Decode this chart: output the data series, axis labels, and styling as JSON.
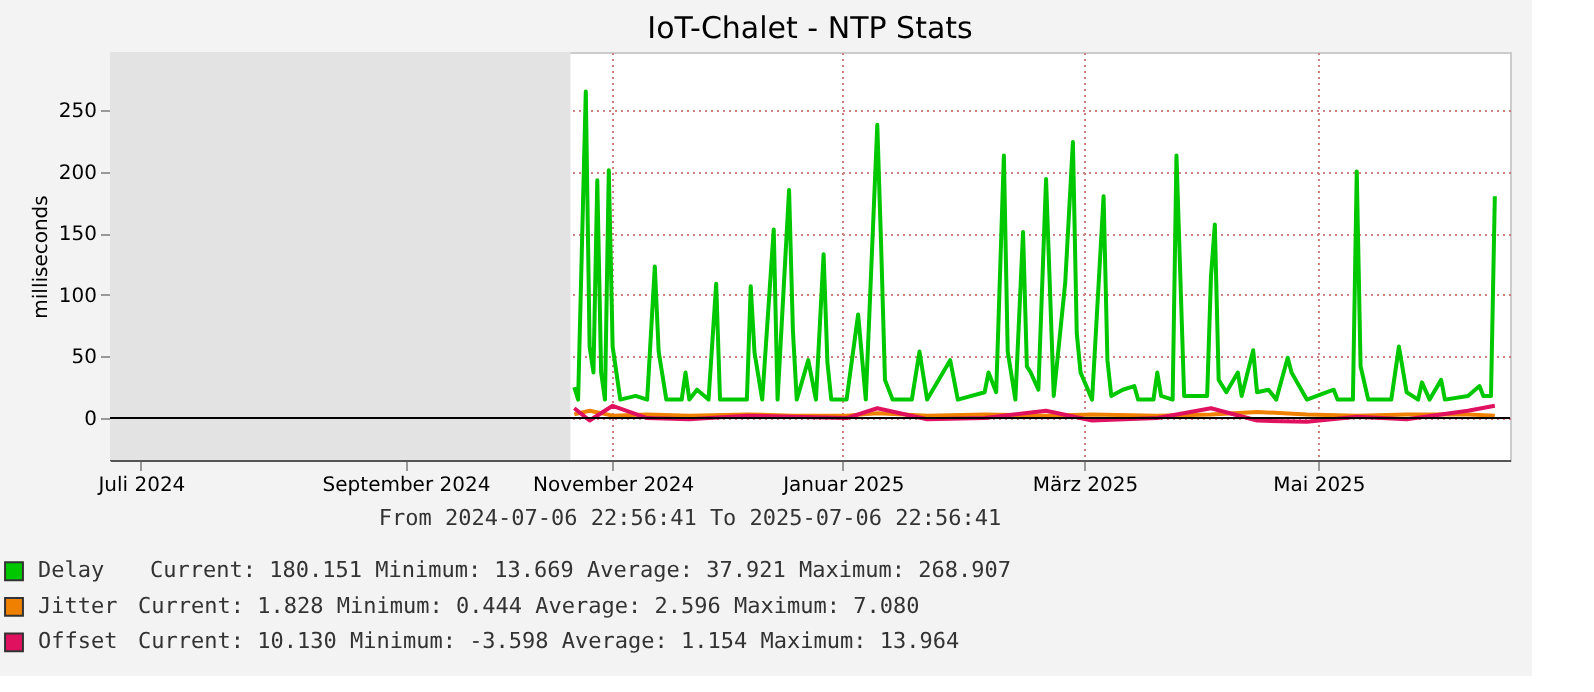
{
  "chart_data": {
    "type": "line",
    "title": "IoT-Chalet - NTP Stats",
    "ylabel": "milliseconds",
    "xlim": [
      "2024-07-06T22:56:41",
      "2025-07-06T22:56:41"
    ],
    "xticks": [
      {
        "value": "2024-07-15",
        "label": "Juli 2024"
      },
      {
        "value": "2024-09-22",
        "label": "September 2024"
      },
      {
        "value": "2024-11-15",
        "label": "November 2024"
      },
      {
        "value": "2025-01-14",
        "label": "Januar 2025"
      },
      {
        "value": "2025-03-18",
        "label": "März 2025"
      },
      {
        "value": "2025-05-18",
        "label": "Mai 2025"
      }
    ],
    "ylim": [
      -34,
      297
    ],
    "yticks": [
      0,
      50,
      100,
      150,
      200,
      250
    ],
    "grid": true,
    "legend": "bottom",
    "marker": "none",
    "line_style": "solid",
    "bands": [
      {
        "axis": "x",
        "from": "2024-07-06T22:56:41",
        "to": "2024-11-04",
        "color": "#e3e3e3"
      }
    ],
    "ref_lines": [
      {
        "axis": "y",
        "value": 0,
        "color": "#000000"
      }
    ],
    "series": [
      {
        "name": "Delay",
        "color": "#00c800",
        "x": [
          "2024-11-05",
          "2024-11-06",
          "2024-11-08",
          "2024-11-09",
          "2024-11-10",
          "2024-11-11",
          "2024-11-12",
          "2024-11-13",
          "2024-11-14",
          "2024-11-15",
          "2024-11-17",
          "2024-11-21",
          "2024-11-24",
          "2024-11-26",
          "2024-11-27",
          "2024-11-29",
          "2024-12-03",
          "2024-12-04",
          "2024-12-05",
          "2024-12-07",
          "2024-12-10",
          "2024-12-12",
          "2024-12-13",
          "2024-12-20",
          "2024-12-21",
          "2024-12-22",
          "2024-12-24",
          "2024-12-27",
          "2024-12-28",
          "2024-12-31",
          "2025-01-01",
          "2025-01-02",
          "2025-01-05",
          "2025-01-07",
          "2025-01-09",
          "2025-01-10",
          "2025-01-11",
          "2025-01-15",
          "2025-01-18",
          "2025-01-20",
          "2025-01-23",
          "2025-01-24",
          "2025-01-25",
          "2025-01-27",
          "2025-02-01",
          "2025-02-03",
          "2025-02-05",
          "2025-02-11",
          "2025-02-13",
          "2025-02-20",
          "2025-02-21",
          "2025-02-23",
          "2025-02-25",
          "2025-02-26",
          "2025-02-28",
          "2025-03-02",
          "2025-03-03",
          "2025-03-04",
          "2025-03-06",
          "2025-03-08",
          "2025-03-10",
          "2025-03-13",
          "2025-03-15",
          "2025-03-16",
          "2025-03-17",
          "2025-03-20",
          "2025-03-23",
          "2025-03-24",
          "2025-03-25",
          "2025-03-28",
          "2025-03-31",
          "2025-04-01",
          "2025-04-05",
          "2025-04-06",
          "2025-04-07",
          "2025-04-10",
          "2025-04-11",
          "2025-04-13",
          "2025-04-19",
          "2025-04-20",
          "2025-04-21",
          "2025-04-22",
          "2025-04-24",
          "2025-04-27",
          "2025-04-28",
          "2025-05-01",
          "2025-05-02",
          "2025-05-05",
          "2025-05-07",
          "2025-05-10",
          "2025-05-11",
          "2025-05-13",
          "2025-05-15",
          "2025-05-22",
          "2025-05-23",
          "2025-05-27",
          "2025-05-28",
          "2025-05-29",
          "2025-05-31",
          "2025-06-06",
          "2025-06-08",
          "2025-06-10",
          "2025-06-13",
          "2025-06-14",
          "2025-06-16",
          "2025-06-19",
          "2025-06-20",
          "2025-06-26",
          "2025-06-29",
          "2025-06-30",
          "2025-07-02",
          "2025-07-03"
        ],
        "values": [
          25,
          15,
          265,
          58,
          37,
          193,
          37,
          15,
          201,
          58,
          15,
          18,
          15,
          123,
          54,
          15,
          15,
          37,
          15,
          23,
          15,
          109,
          15,
          15,
          107,
          53,
          15,
          153,
          15,
          185,
          71,
          15,
          47,
          15,
          133,
          45,
          15,
          15,
          84,
          15,
          238,
          140,
          31,
          15,
          15,
          54,
          15,
          47,
          15,
          21,
          37,
          21,
          213,
          54,
          15,
          151,
          42,
          37,
          23,
          194,
          18,
          110,
          224,
          69,
          37,
          15,
          180,
          47,
          18,
          23,
          26,
          15,
          15,
          37,
          18,
          15,
          213,
          18,
          18,
          115,
          157,
          31,
          21,
          37,
          18,
          55,
          21,
          23,
          15,
          49,
          37,
          26,
          15,
          23,
          15,
          15,
          200,
          42,
          15,
          15,
          58,
          21,
          15,
          29,
          15,
          31,
          15,
          18,
          26,
          18,
          18,
          180
        ]
      },
      {
        "name": "Jitter",
        "color": "#f08000",
        "x": [
          "2024-11-05",
          "2024-11-09",
          "2024-11-15",
          "2024-11-24",
          "2024-12-05",
          "2024-12-20",
          "2025-01-01",
          "2025-01-15",
          "2025-01-23",
          "2025-02-05",
          "2025-02-20",
          "2025-03-08",
          "2025-03-20",
          "2025-04-06",
          "2025-04-20",
          "2025-05-02",
          "2025-05-15",
          "2025-05-28",
          "2025-06-10",
          "2025-06-26",
          "2025-07-03"
        ],
        "values": [
          3,
          6,
          2,
          3,
          2,
          3,
          2,
          2,
          4,
          2,
          3,
          2,
          3,
          2,
          3,
          5,
          3,
          2,
          3,
          3,
          2
        ]
      },
      {
        "name": "Offset",
        "color": "#e0115f",
        "x": [
          "2024-11-05",
          "2024-11-09",
          "2024-11-15",
          "2024-11-24",
          "2024-12-05",
          "2024-12-20",
          "2025-01-01",
          "2025-01-15",
          "2025-01-23",
          "2025-02-05",
          "2025-02-20",
          "2025-03-08",
          "2025-03-20",
          "2025-04-06",
          "2025-04-20",
          "2025-05-02",
          "2025-05-15",
          "2025-05-28",
          "2025-06-10",
          "2025-06-26",
          "2025-07-03"
        ],
        "values": [
          8,
          -2,
          10,
          0,
          -1,
          2,
          1,
          0,
          8,
          -1,
          0,
          6,
          -2,
          0,
          8,
          -2,
          -3,
          1,
          -1,
          6,
          10
        ]
      }
    ],
    "annotations": [
      "From 2024-07-06 22:56:41 To 2025-07-06 22:56:41",
      "Current: 180.151  Minimum: 13.669  Average: 37.921  Maximum: 268.907",
      "Current: 1.828  Minimum: 0.444  Average: 2.596  Maximum: 7.080",
      "Current: 10.130  Minimum: -3.598  Average: 1.154  Maximum: 13.964"
    ]
  }
}
